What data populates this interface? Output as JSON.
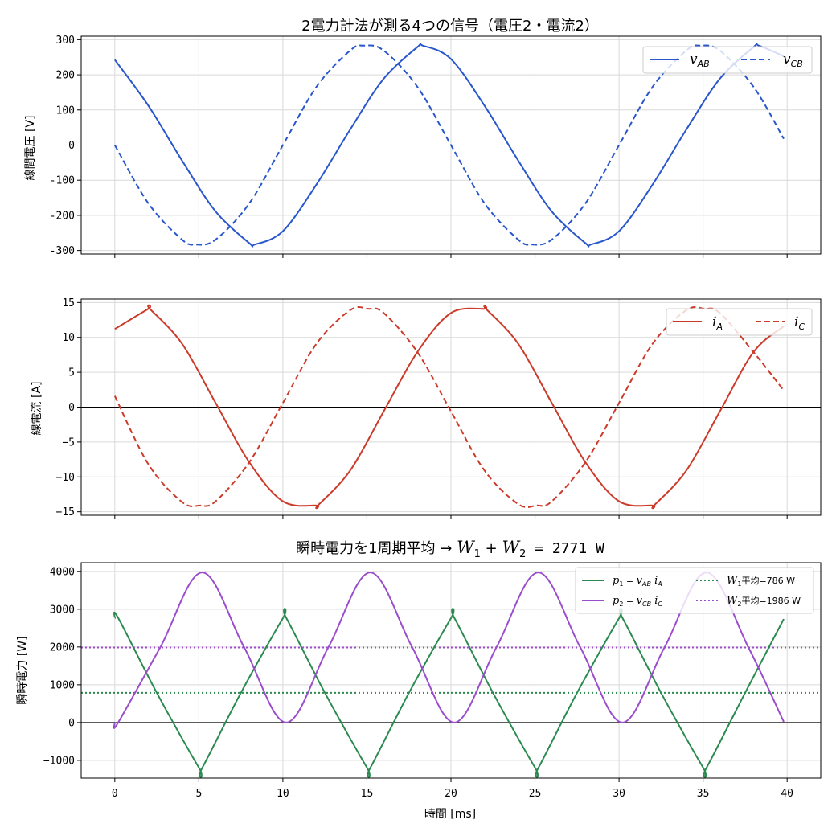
{
  "chart_data": [
    {
      "type": "line",
      "title": "2電力計法が測る4つの信号（電圧2・電流2）",
      "xlabel": "",
      "ylabel": "線間電圧 [V]",
      "xlim": [
        -2,
        42
      ],
      "ylim": [
        -310,
        310
      ],
      "yticks": [
        "300",
        "200",
        "100",
        "0",
        "-100",
        "-200",
        "-300"
      ],
      "ytick_values": [
        300,
        200,
        100,
        0,
        -100,
        -200,
        -300
      ],
      "grid": true,
      "legend": "top-right",
      "series": [
        {
          "name_main": "v",
          "name_sub": "AB",
          "color": "#2856cc",
          "dash": "solid",
          "x": [
            0,
            2,
            4,
            6,
            8,
            8.33,
            10,
            12,
            14,
            16,
            18,
            18.33,
            20,
            22,
            24,
            26,
            28,
            28.33,
            30,
            32,
            34,
            36,
            38,
            38.33,
            39.8
          ],
          "y": [
            243,
            112,
            -44,
            -189,
            -279,
            -283,
            -245,
            -112,
            44,
            189,
            279,
            283,
            245,
            112,
            -44,
            -189,
            -279,
            -283,
            -245,
            -112,
            44,
            189,
            279,
            283,
            253
          ]
        },
        {
          "name_main": "v",
          "name_sub": "CB",
          "color": "#2856cc",
          "dash": "dashed",
          "x": [
            0,
            2,
            4,
            4.83,
            6,
            8,
            10,
            12,
            14,
            14.83,
            16,
            18,
            20,
            22,
            24,
            24.83,
            26,
            28,
            30,
            32,
            34,
            34.83,
            36,
            38,
            39.8
          ],
          "y": [
            0,
            -166,
            -269,
            -283,
            -269,
            -166,
            0,
            166,
            269,
            283,
            269,
            166,
            0,
            -166,
            -269,
            -283,
            -269,
            -166,
            0,
            166,
            269,
            283,
            269,
            166,
            18
          ]
        }
      ]
    },
    {
      "type": "line",
      "title": "",
      "xlabel": "",
      "ylabel": "線電流 [A]",
      "xlim": [
        -2,
        42
      ],
      "ylim": [
        -15.5,
        15.5
      ],
      "yticks": [
        "15",
        "10",
        "5",
        "0",
        "−5",
        "−10",
        "−15"
      ],
      "ytick_values": [
        15,
        10,
        5,
        0,
        -5,
        -10,
        -15
      ],
      "grid": true,
      "legend": "top-right",
      "series": [
        {
          "name_main": "i",
          "name_sub": "A",
          "color": "#cc3a2a",
          "dash": "solid",
          "x": [
            0,
            2,
            2.08,
            4,
            6,
            8,
            10,
            12,
            12.08,
            14,
            16,
            18,
            20,
            22,
            22.08,
            24,
            26,
            28,
            30,
            32,
            32.08,
            34,
            36,
            38,
            39.8
          ],
          "y": [
            11.2,
            14.1,
            14.1,
            9.1,
            0.6,
            -7.9,
            -13.5,
            -14.1,
            -14.1,
            -9.1,
            -0.6,
            7.9,
            13.5,
            14.1,
            14.1,
            9.1,
            0.6,
            -7.9,
            -13.5,
            -14.1,
            -14.1,
            -9.1,
            -0.6,
            7.9,
            11.6
          ]
        },
        {
          "name_main": "i",
          "name_sub": "C",
          "color": "#cc3a2a",
          "dash": "dashed",
          "x": [
            0,
            2,
            4,
            5.08,
            6,
            8,
            10,
            12,
            14,
            15.08,
            16,
            18,
            20,
            22,
            24,
            25.08,
            26,
            28,
            30,
            32,
            34,
            35.08,
            36,
            38,
            39.8
          ],
          "y": [
            1.6,
            -8.2,
            -13.6,
            -14.1,
            -13.5,
            -7.9,
            0.6,
            9.1,
            13.9,
            14.1,
            13.5,
            7.9,
            -0.6,
            -9.1,
            -13.9,
            -14.1,
            -13.5,
            -7.9,
            0.6,
            9.1,
            13.9,
            14.1,
            13.5,
            7.9,
            2.4
          ]
        }
      ]
    },
    {
      "type": "line",
      "title_prefix": "瞬時電力を1周期平均 → ",
      "title_math_a": "W",
      "title_sub_a": "1",
      "title_plus": " + ",
      "title_math_b": "W",
      "title_sub_b": "2",
      "title_suffix": " = 2771 W",
      "xlabel": "時間 [ms]",
      "ylabel": "瞬時電力 [W]",
      "xlim": [
        -2,
        42
      ],
      "ylim": [
        -1470,
        4230
      ],
      "xticks": [
        "0",
        "5",
        "10",
        "15",
        "20",
        "25",
        "30",
        "35",
        "40"
      ],
      "xtick_values": [
        0,
        5,
        10,
        15,
        20,
        25,
        30,
        35,
        40
      ],
      "yticks": [
        "4000",
        "3000",
        "2000",
        "1000",
        "0",
        "−1000"
      ],
      "ytick_values": [
        4000,
        3000,
        2000,
        1000,
        0,
        -1000
      ],
      "grid": true,
      "legend": "top-right",
      "series": [
        {
          "legend_text": "p₁ = v_AB i_A",
          "label_main": "p",
          "label_sub": "1",
          "label_eq": " = ",
          "label_v": "v",
          "label_vsub": "AB",
          "label_i": " i",
          "label_isub": "A",
          "color": "#2a8a4f",
          "dash": "solid",
          "x": [
            0,
            0.2,
            2.5,
            5,
            5.2,
            7.5,
            10,
            10.2,
            12.5,
            15,
            15.2,
            17.5,
            20,
            20.2,
            22.5,
            25,
            25.2,
            27.5,
            30,
            30.2,
            32.5,
            35,
            35.2,
            37.5,
            39.8
          ],
          "y": [
            2760,
            2771,
            786,
            -1190,
            -1199,
            786,
            2760,
            2771,
            786,
            -1190,
            -1199,
            786,
            2760,
            2771,
            786,
            -1190,
            -1199,
            786,
            2760,
            2771,
            786,
            -1190,
            -1199,
            786,
            2740
          ]
        },
        {
          "legend_text": "p₂ = v_CB i_C",
          "label_main": "p",
          "label_sub": "2",
          "label_eq": " = ",
          "label_v": "v",
          "label_vsub": "CB",
          "label_i": " i",
          "label_isub": "C",
          "color": "#9a4dcc",
          "dash": "solid",
          "x": [
            0,
            0.2,
            2.7,
            5.2,
            7.7,
            10.2,
            12.7,
            15.2,
            17.7,
            20.2,
            22.7,
            25.2,
            27.7,
            30.2,
            32.7,
            35.2,
            37.7,
            39.8
          ],
          "y": [
            0,
            0,
            1986,
            3972,
            1986,
            0,
            1986,
            3972,
            1986,
            0,
            1986,
            3972,
            1986,
            0,
            1986,
            3972,
            1986,
            20
          ]
        }
      ],
      "hlines": [
        {
          "legend_text": "W₁平均=786 W",
          "label_main": "W",
          "label_sub": "1",
          "label_rest": "平均=786 W",
          "value": 786,
          "color": "#2a8a4f",
          "dash": "dotted"
        },
        {
          "legend_text": "W₂平均=1986 W",
          "label_main": "W",
          "label_sub": "2",
          "label_rest": "平均=1986 W",
          "value": 1986,
          "color": "#9a4dcc",
          "dash": "dotted"
        }
      ]
    }
  ]
}
